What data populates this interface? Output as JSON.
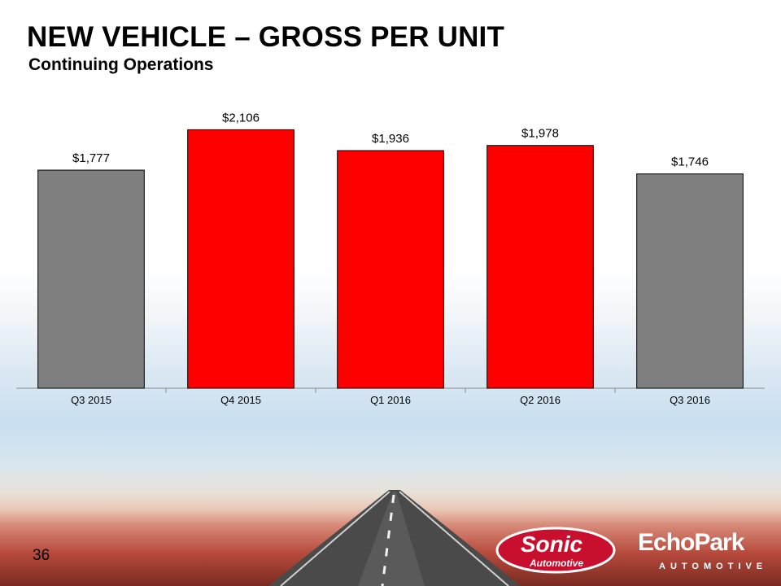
{
  "header": {
    "title": "NEW VEHICLE – GROSS PER UNIT",
    "subtitle": "Continuing Operations"
  },
  "footer": {
    "page_number": "36",
    "logo_left_text": "Sonic",
    "logo_left_sub": "Automotive",
    "logo_right_text": "EchoPark",
    "logo_right_sub": "AUTOMOTIVE"
  },
  "chart_data": {
    "type": "bar",
    "categories": [
      "Q3 2015",
      "Q4 2015",
      "Q1 2016",
      "Q2 2016",
      "Q3 2016"
    ],
    "values": [
      1777,
      2106,
      1936,
      1978,
      1746
    ],
    "data_labels": [
      "$1,777",
      "$2,106",
      "$1,936",
      "$1,978",
      "$1,746"
    ],
    "bar_colors": [
      "#7f7f7f",
      "#ff0000",
      "#ff0000",
      "#ff0000",
      "#7f7f7f"
    ],
    "ylim": [
      0,
      2500
    ],
    "grid": false,
    "legend": false
  }
}
